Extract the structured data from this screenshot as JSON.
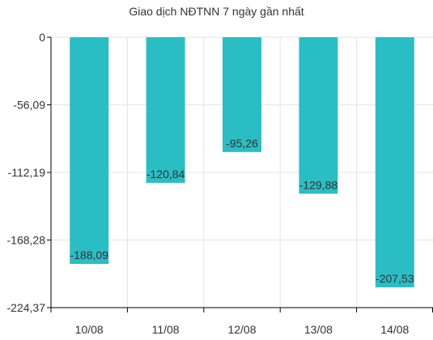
{
  "chart_data": {
    "type": "bar",
    "title": "Giao dịch NĐTNN 7 ngày gần nhất",
    "categories": [
      "10/08",
      "11/08",
      "12/08",
      "13/08",
      "14/08"
    ],
    "values": [
      -188.09,
      -120.84,
      -95.26,
      -129.88,
      -207.53
    ],
    "value_labels": [
      "-188,09",
      "-120,84",
      "-95,26",
      "-129,88",
      "-207,53"
    ],
    "y_ticks": [
      0,
      -56.09,
      -112.19,
      -168.28,
      -224.37
    ],
    "y_tick_labels": [
      "0",
      "-56,09",
      "-112,19",
      "-168,28",
      "-224,37"
    ],
    "ylim": [
      -224.37,
      0
    ],
    "xlabel": "",
    "ylabel": "",
    "grid": true,
    "legend": "none",
    "colors": {
      "bar": "#2bbdc4",
      "grid": "#e3e3e3",
      "axis": "#000000",
      "text": "#333333"
    }
  }
}
